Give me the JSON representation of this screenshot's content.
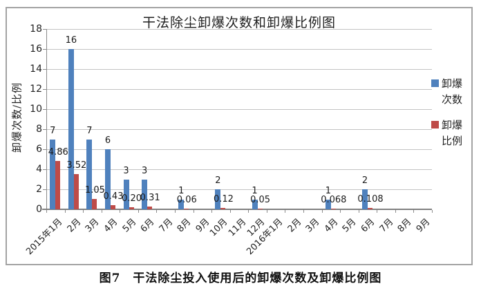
{
  "page": {
    "caption": "图7　干法除尘投入使用后的卸爆次数及卸爆比例图"
  },
  "chart_data": {
    "type": "bar",
    "title": "干法除尘卸爆次数和卸爆比例图",
    "ylabel": "卸爆次数/比例",
    "xlabel": "",
    "ylim": [
      0,
      18
    ],
    "yticks": [
      0,
      2,
      4,
      6,
      8,
      10,
      12,
      14,
      16,
      18
    ],
    "grid": true,
    "legend_position": "right",
    "categories": [
      "2015年1月",
      "2月",
      "3月",
      "4月",
      "5月",
      "6月",
      "7月",
      "8月",
      "9月",
      "10月",
      "11月",
      "12月",
      "2016年1月",
      "2月",
      "3月",
      "4月",
      "5月",
      "6月",
      "7月",
      "8月",
      "9月"
    ],
    "series": [
      {
        "name": "卸爆次数",
        "color": "#4F81BD",
        "values": [
          7,
          16,
          7,
          6,
          3,
          3,
          0,
          1,
          0,
          2,
          0,
          1,
          0,
          0,
          0,
          1,
          0,
          2,
          0,
          0,
          0
        ],
        "labels": [
          "7",
          "16",
          "7",
          "6",
          "3",
          "3",
          "",
          "1",
          "",
          "2",
          "",
          "1",
          "",
          "",
          "",
          "1",
          "",
          "2",
          "",
          "",
          ""
        ]
      },
      {
        "name": "卸爆比例",
        "color": "#BE4B48",
        "values": [
          4.86,
          3.52,
          1.05,
          0.43,
          0.2,
          0.31,
          0,
          0.06,
          0,
          0.12,
          0,
          0.05,
          0,
          0,
          0,
          0.068,
          0,
          0.108,
          0,
          0,
          0
        ],
        "labels": [
          "4.86",
          "3.52",
          "1.05",
          "0.43",
          "0.20",
          "0.31",
          "",
          "0.06",
          "",
          "0.12",
          "",
          "0.05",
          "",
          "",
          "",
          "0.068",
          "",
          "0.108",
          "",
          "",
          ""
        ]
      }
    ]
  }
}
